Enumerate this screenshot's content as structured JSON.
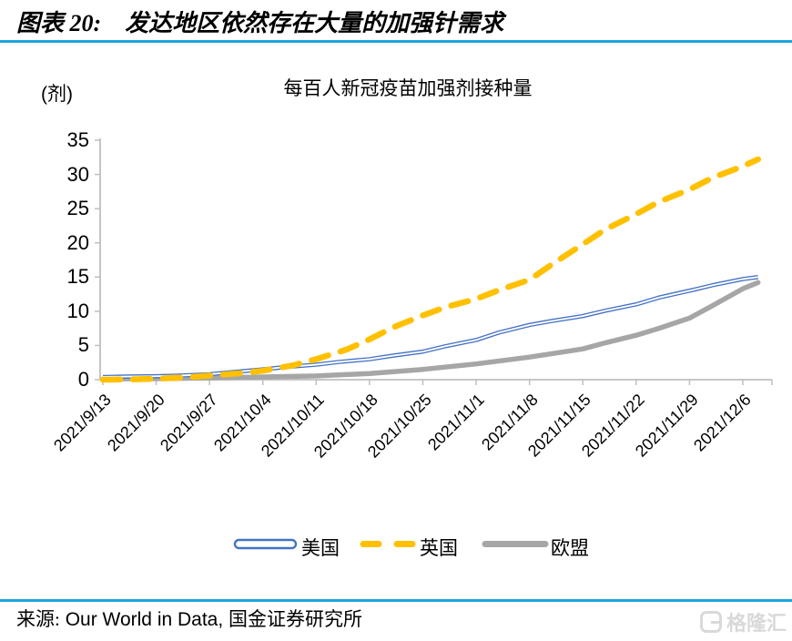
{
  "header": {
    "figure_label": "图表 20:",
    "title": "发达地区依然存在大量的加强针需求"
  },
  "footer": {
    "source_prefix": "来源:",
    "source_latin": "Our World in Data,",
    "source_suffix": "国金证券研究所",
    "watermark_text": "格隆汇"
  },
  "icons": {
    "watermark_logo": "gelonghui-g-mark"
  },
  "colors": {
    "rule": "#1BA5DF",
    "us_line": "#4472C4",
    "uk_line": "#FFC000",
    "eu_line": "#A6A6A6",
    "axis": "#BFBFBF",
    "watermark": "#D9D9D9"
  },
  "chart_data": {
    "type": "line",
    "title": "每百人新冠疫苗加强剂接种量",
    "unit_label": "(剂)",
    "xlabel": "",
    "ylabel": "剂",
    "ylim": [
      0,
      35
    ],
    "y_ticks": [
      0,
      5,
      10,
      15,
      20,
      25,
      30,
      35
    ],
    "x_tick_labels": [
      "2021/9/13",
      "2021/9/20",
      "2021/9/27",
      "2021/10/4",
      "2021/10/11",
      "2021/10/18",
      "2021/10/25",
      "2021/11/1",
      "2021/11/8",
      "2021/11/15",
      "2021/11/22",
      "2021/11/29",
      "2021/12/6"
    ],
    "x_tick_days": [
      0,
      7,
      14,
      21,
      28,
      35,
      42,
      49,
      56,
      63,
      70,
      77,
      84
    ],
    "x_range_days": [
      0,
      86
    ],
    "grid": false,
    "legend_position": "bottom",
    "series": [
      {
        "name": "美国",
        "style": "double-line",
        "color": "#4472C4",
        "points": [
          [
            0,
            0.4
          ],
          [
            3,
            0.45
          ],
          [
            7,
            0.5
          ],
          [
            10,
            0.6
          ],
          [
            14,
            0.8
          ],
          [
            17,
            1.1
          ],
          [
            21,
            1.5
          ],
          [
            24,
            1.85
          ],
          [
            28,
            2.2
          ],
          [
            31,
            2.6
          ],
          [
            35,
            3.0
          ],
          [
            38,
            3.5
          ],
          [
            42,
            4.1
          ],
          [
            45,
            4.9
          ],
          [
            49,
            5.8
          ],
          [
            52,
            6.9
          ],
          [
            56,
            8.0
          ],
          [
            59,
            8.6
          ],
          [
            63,
            9.3
          ],
          [
            66,
            10.1
          ],
          [
            70,
            11.0
          ],
          [
            73,
            12.0
          ],
          [
            77,
            13.0
          ],
          [
            80,
            13.8
          ],
          [
            84,
            14.7
          ],
          [
            86,
            15.0
          ]
        ]
      },
      {
        "name": "英国",
        "style": "dashed",
        "color": "#FFC000",
        "points": [
          [
            0,
            0.0
          ],
          [
            4,
            0.05
          ],
          [
            7,
            0.15
          ],
          [
            11,
            0.35
          ],
          [
            14,
            0.6
          ],
          [
            18,
            0.95
          ],
          [
            21,
            1.3
          ],
          [
            25,
            2.1
          ],
          [
            28,
            3.0
          ],
          [
            32,
            4.4
          ],
          [
            35,
            5.9
          ],
          [
            38,
            7.6
          ],
          [
            42,
            9.4
          ],
          [
            45,
            10.6
          ],
          [
            49,
            11.8
          ],
          [
            52,
            13.1
          ],
          [
            56,
            14.6
          ],
          [
            59,
            16.9
          ],
          [
            63,
            19.8
          ],
          [
            66,
            22.0
          ],
          [
            70,
            24.2
          ],
          [
            73,
            26.0
          ],
          [
            77,
            27.8
          ],
          [
            80,
            29.5
          ],
          [
            84,
            31.2
          ],
          [
            86,
            32.2
          ]
        ]
      },
      {
        "name": "欧盟",
        "style": "solid-thick",
        "color": "#A6A6A6",
        "points": [
          [
            0,
            0.1
          ],
          [
            7,
            0.15
          ],
          [
            14,
            0.25
          ],
          [
            21,
            0.4
          ],
          [
            28,
            0.55
          ],
          [
            35,
            0.9
          ],
          [
            42,
            1.5
          ],
          [
            49,
            2.3
          ],
          [
            56,
            3.3
          ],
          [
            63,
            4.5
          ],
          [
            66,
            5.4
          ],
          [
            70,
            6.5
          ],
          [
            73,
            7.5
          ],
          [
            77,
            9.0
          ],
          [
            80,
            10.8
          ],
          [
            84,
            13.3
          ],
          [
            86,
            14.2
          ]
        ]
      }
    ]
  }
}
